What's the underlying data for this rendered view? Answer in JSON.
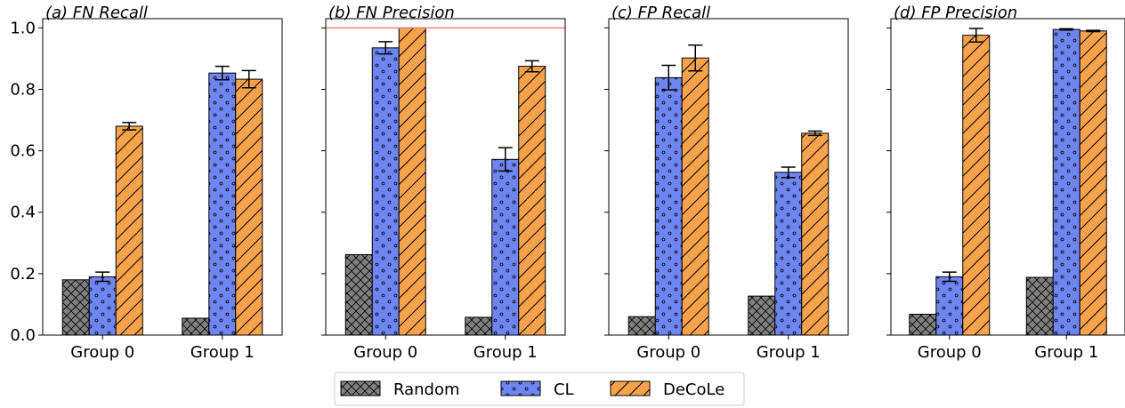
{
  "chart_data": [
    {
      "type": "bar",
      "title": "(a) FN Recall",
      "categories": [
        "Group 0",
        "Group 1"
      ],
      "ylim": [
        0,
        1.03
      ],
      "yticks": [
        "0.0",
        "0.2",
        "0.4",
        "0.6",
        "0.8",
        "1.0"
      ],
      "show_y_labels": true,
      "reference_line": null,
      "series": [
        {
          "name": "Random",
          "values": [
            0.18,
            0.055
          ],
          "errors": [
            0,
            0
          ]
        },
        {
          "name": "CL",
          "values": [
            0.19,
            0.853
          ],
          "errors": [
            0.015,
            0.022
          ]
        },
        {
          "name": "DeCoLe",
          "values": [
            0.68,
            0.833
          ],
          "errors": [
            0.012,
            0.028
          ]
        }
      ]
    },
    {
      "type": "bar",
      "title": "(b) FN Precision",
      "categories": [
        "Group 0",
        "Group 1"
      ],
      "ylim": [
        0,
        1.03
      ],
      "yticks": [
        "0.0",
        "0.2",
        "0.4",
        "0.6",
        "0.8",
        "1.0"
      ],
      "show_y_labels": false,
      "reference_line": 1.0,
      "series": [
        {
          "name": "Random",
          "values": [
            0.262,
            0.058
          ],
          "errors": [
            0,
            0
          ]
        },
        {
          "name": "CL",
          "values": [
            0.935,
            0.572
          ],
          "errors": [
            0.02,
            0.038
          ]
        },
        {
          "name": "DeCoLe",
          "values": [
            1.0,
            0.875
          ],
          "errors": [
            0,
            0.018
          ]
        }
      ]
    },
    {
      "type": "bar",
      "title": "(c) FP Recall",
      "categories": [
        "Group 0",
        "Group 1"
      ],
      "ylim": [
        0,
        1.03
      ],
      "yticks": [
        "0.0",
        "0.2",
        "0.4",
        "0.6",
        "0.8",
        "1.0"
      ],
      "show_y_labels": false,
      "reference_line": null,
      "series": [
        {
          "name": "Random",
          "values": [
            0.06,
            0.127
          ],
          "errors": [
            0,
            0
          ]
        },
        {
          "name": "CL",
          "values": [
            0.838,
            0.53
          ],
          "errors": [
            0.04,
            0.017
          ]
        },
        {
          "name": "DeCoLe",
          "values": [
            0.902,
            0.657
          ],
          "errors": [
            0.042,
            0.007
          ]
        }
      ]
    },
    {
      "type": "bar",
      "title": "(d) FP Precision",
      "categories": [
        "Group 0",
        "Group 1"
      ],
      "ylim": [
        0,
        1.03
      ],
      "yticks": [
        "0.0",
        "0.2",
        "0.4",
        "0.6",
        "0.8",
        "1.0"
      ],
      "show_y_labels": false,
      "reference_line": null,
      "series": [
        {
          "name": "Random",
          "values": [
            0.068,
            0.188
          ],
          "errors": [
            0,
            0
          ]
        },
        {
          "name": "CL",
          "values": [
            0.19,
            0.995
          ],
          "errors": [
            0.015,
            0.002
          ]
        },
        {
          "name": "DeCoLe",
          "values": [
            0.976,
            0.99
          ],
          "errors": [
            0.022,
            0.002
          ]
        }
      ]
    }
  ],
  "legend": {
    "placement": "bottom-center",
    "entries": [
      {
        "label": "Random",
        "color": "#808080",
        "hatch": "crosshatch"
      },
      {
        "label": "CL",
        "color": "#6f86f2",
        "hatch": "dots"
      },
      {
        "label": "DeCoLe",
        "color": "#f8a24b",
        "hatch": "diagonal"
      }
    ]
  },
  "colors": {
    "random": "#808080",
    "cl": "#6f86f2",
    "decole": "#f8a24b",
    "reference_line": "#f08080"
  }
}
